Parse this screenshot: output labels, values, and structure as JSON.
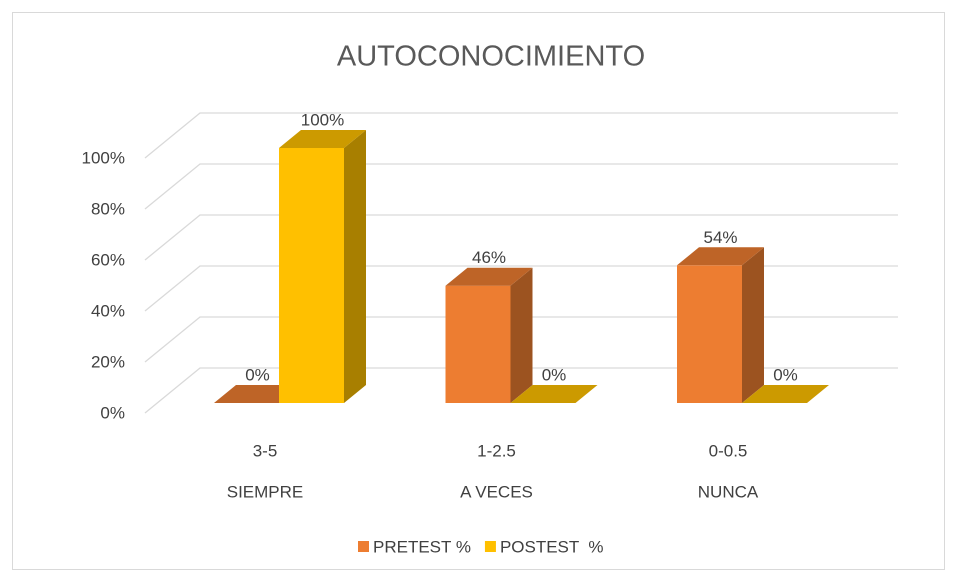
{
  "chart_data": {
    "type": "bar3d",
    "title": "AUTOCONOCIMIENTO",
    "categories": [
      "3-5",
      "1-2.5",
      "0-0.5"
    ],
    "category_groups": [
      "SIEMPRE",
      "A VECES",
      "NUNCA"
    ],
    "series": [
      {
        "name": "PRETEST %",
        "color": "#ED7D31",
        "values": [
          0,
          46,
          54
        ],
        "value_labels": [
          "0%",
          "46%",
          "54%"
        ]
      },
      {
        "name": "POSTEST  %",
        "color": "#FFC000",
        "values": [
          100,
          0,
          0
        ],
        "value_labels": [
          "100%",
          "0%",
          "0%"
        ]
      }
    ],
    "ylim": [
      0,
      100
    ],
    "yticks": [
      {
        "value": 0,
        "label": "0%"
      },
      {
        "value": 20,
        "label": "20%"
      },
      {
        "value": 40,
        "label": "40%"
      },
      {
        "value": 60,
        "label": "60%"
      },
      {
        "value": 80,
        "label": "80%"
      },
      {
        "value": 100,
        "label": "100%"
      }
    ],
    "grid": true,
    "legend": "bottom"
  }
}
